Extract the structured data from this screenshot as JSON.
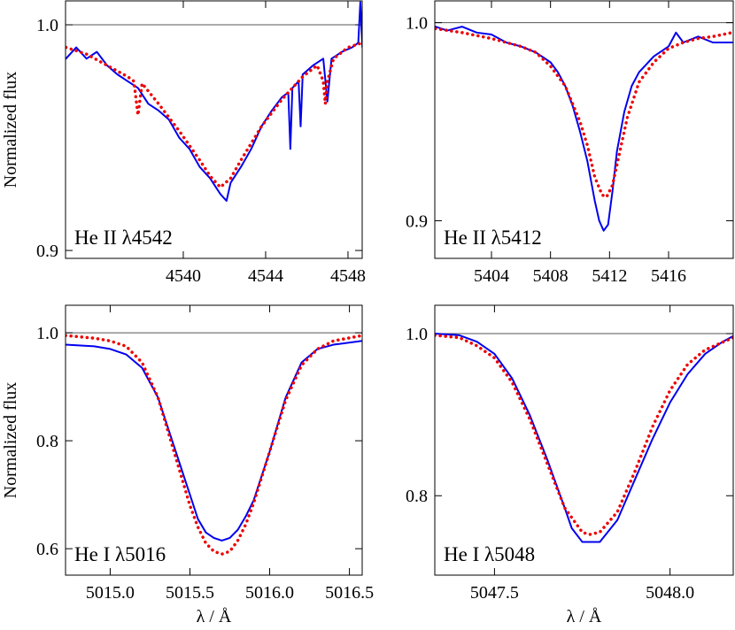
{
  "chart_data": [
    {
      "type": "line",
      "annotation": "He II λ4542",
      "ylabel": "Normalized flux",
      "xlim": [
        4534.28,
        4548.69
      ],
      "ylim": [
        0.8965,
        1.0106
      ],
      "xticks": [
        4540,
        4544,
        4548
      ],
      "yticks": [
        {
          "value": 1,
          "label": "1.0"
        },
        0.9
      ],
      "reference_line": 1,
      "series": [
        {
          "color": "#0000ee",
          "style": "solid",
          "x": [
            4534.3,
            4534.8,
            4535.3,
            4535.8,
            4536.3,
            4536.8,
            4537.3,
            4537.8,
            4538.3,
            4538.8,
            4539.3,
            4539.8,
            4540.3,
            4540.8,
            4541.3,
            4541.8,
            4542.1,
            4542.3,
            4542.8,
            4543.3,
            4543.8,
            4544.3,
            4544.8,
            4545.1,
            4545.2,
            4545.3,
            4545.6,
            4545.7,
            4545.8,
            4546.3,
            4546.8,
            4547.0,
            4547.2,
            4547.7,
            4548.2,
            4548.5,
            4548.6,
            4548.7
          ],
          "values": [
            0.985,
            0.99,
            0.985,
            0.988,
            0.982,
            0.978,
            0.975,
            0.972,
            0.965,
            0.962,
            0.958,
            0.95,
            0.945,
            0.937,
            0.932,
            0.925,
            0.922,
            0.93,
            0.937,
            0.945,
            0.955,
            0.962,
            0.968,
            0.97,
            0.945,
            0.972,
            0.975,
            0.955,
            0.978,
            0.982,
            0.985,
            0.966,
            0.985,
            0.988,
            0.99,
            0.992,
            1.01,
            0.99
          ]
        },
        {
          "color": "#ee0000",
          "style": "dotted",
          "x": [
            4534.3,
            4535.3,
            4536.3,
            4537.3,
            4537.6,
            4537.8,
            4538.0,
            4538.8,
            4539.8,
            4540.8,
            4541.3,
            4541.8,
            4542.3,
            4542.8,
            4543.8,
            4544.8,
            4545.8,
            4546.5,
            4546.8,
            4546.9,
            4547.0,
            4547.3,
            4548.0,
            4548.7
          ],
          "values": [
            0.99,
            0.987,
            0.982,
            0.977,
            0.975,
            0.96,
            0.974,
            0.965,
            0.953,
            0.94,
            0.933,
            0.928,
            0.932,
            0.94,
            0.955,
            0.967,
            0.977,
            0.982,
            0.975,
            0.965,
            0.975,
            0.985,
            0.99,
            0.992
          ]
        }
      ]
    },
    {
      "type": "line",
      "annotation": "He II λ5412",
      "xlim": [
        5400.16,
        5420.38
      ],
      "ylim": [
        0.881,
        1.011
      ],
      "xticks": [
        5404,
        5408,
        5412,
        5416
      ],
      "yticks": [
        {
          "value": 1,
          "label": "1.0"
        },
        0.9
      ],
      "reference_line": 1,
      "series": [
        {
          "color": "#0000ee",
          "style": "solid",
          "x": [
            5400.2,
            5401,
            5402,
            5403,
            5404,
            5405,
            5406,
            5407,
            5408,
            5408.5,
            5409,
            5409.5,
            5410,
            5410.5,
            5411,
            5411.3,
            5411.6,
            5411.9,
            5412.2,
            5412.5,
            5413,
            5413.5,
            5414,
            5415,
            5416,
            5416.5,
            5417,
            5418,
            5419,
            5420.3
          ],
          "values": [
            0.998,
            0.996,
            0.998,
            0.995,
            0.994,
            0.99,
            0.988,
            0.985,
            0.98,
            0.975,
            0.968,
            0.958,
            0.945,
            0.93,
            0.91,
            0.9,
            0.895,
            0.898,
            0.915,
            0.935,
            0.955,
            0.968,
            0.975,
            0.983,
            0.988,
            0.995,
            0.99,
            0.993,
            0.99,
            0.99
          ]
        },
        {
          "color": "#ee0000",
          "style": "dotted",
          "x": [
            5400.2,
            5402,
            5404,
            5406,
            5407,
            5408,
            5409,
            5410,
            5410.5,
            5411,
            5411.5,
            5411.8,
            5412.2,
            5412.7,
            5413.2,
            5414,
            5415,
            5416,
            5417,
            5418,
            5419,
            5420.3
          ],
          "values": [
            0.997,
            0.995,
            0.992,
            0.988,
            0.985,
            0.978,
            0.968,
            0.95,
            0.938,
            0.922,
            0.913,
            0.912,
            0.918,
            0.935,
            0.952,
            0.97,
            0.98,
            0.987,
            0.99,
            0.992,
            0.993,
            0.995
          ]
        }
      ]
    },
    {
      "type": "line",
      "annotation": "He I λ5016",
      "ylabel": "Normalized flux",
      "xlabel": "λ / Å",
      "xlim": [
        5014.72,
        5016.58
      ],
      "ylim": [
        0.551,
        1.051
      ],
      "xticks": [
        {
          "value": 5015,
          "label": "5015.0"
        },
        5015.5,
        {
          "value": 5016,
          "label": "5016.0"
        },
        5016.5
      ],
      "yticks": [
        {
          "value": 1,
          "label": "1.0"
        },
        0.8,
        0.6
      ],
      "reference_line": 1,
      "series": [
        {
          "color": "#0000ee",
          "style": "solid",
          "x": [
            5014.72,
            5014.9,
            5015.0,
            5015.1,
            5015.2,
            5015.3,
            5015.4,
            5015.5,
            5015.55,
            5015.6,
            5015.65,
            5015.7,
            5015.75,
            5015.8,
            5015.85,
            5015.9,
            5016.0,
            5016.1,
            5016.2,
            5016.3,
            5016.4,
            5016.58
          ],
          "values": [
            0.978,
            0.975,
            0.97,
            0.96,
            0.935,
            0.88,
            0.79,
            0.7,
            0.655,
            0.63,
            0.62,
            0.615,
            0.62,
            0.635,
            0.66,
            0.69,
            0.78,
            0.88,
            0.945,
            0.97,
            0.978,
            0.985
          ]
        },
        {
          "color": "#ee0000",
          "style": "dotted",
          "x": [
            5014.72,
            5014.9,
            5015.0,
            5015.1,
            5015.2,
            5015.3,
            5015.4,
            5015.5,
            5015.55,
            5015.6,
            5015.65,
            5015.7,
            5015.75,
            5015.8,
            5015.85,
            5015.9,
            5016.0,
            5016.1,
            5016.2,
            5016.3,
            5016.4,
            5016.58
          ],
          "values": [
            0.995,
            0.99,
            0.985,
            0.975,
            0.945,
            0.88,
            0.78,
            0.68,
            0.64,
            0.61,
            0.595,
            0.59,
            0.595,
            0.615,
            0.645,
            0.685,
            0.78,
            0.875,
            0.94,
            0.97,
            0.985,
            0.995
          ]
        }
      ]
    },
    {
      "type": "line",
      "annotation": "He I λ5048",
      "xlabel": "λ / Å",
      "xlim": [
        5047.33,
        5048.18
      ],
      "ylim": [
        0.702,
        1.035
      ],
      "xticks": [
        5047.5,
        {
          "value": 5048,
          "label": "5048.0"
        }
      ],
      "yticks": [
        {
          "value": 1,
          "label": "1.0"
        },
        0.8
      ],
      "reference_line": 1,
      "series": [
        {
          "color": "#0000ee",
          "style": "solid",
          "x": [
            5047.33,
            5047.4,
            5047.45,
            5047.5,
            5047.55,
            5047.6,
            5047.65,
            5047.7,
            5047.72,
            5047.75,
            5047.8,
            5047.85,
            5047.9,
            5047.95,
            5048.0,
            5048.05,
            5048.1,
            5048.15,
            5048.18
          ],
          "values": [
            1.0,
            0.998,
            0.99,
            0.975,
            0.945,
            0.9,
            0.845,
            0.785,
            0.76,
            0.743,
            0.743,
            0.77,
            0.82,
            0.87,
            0.915,
            0.95,
            0.975,
            0.99,
            0.997
          ]
        },
        {
          "color": "#ee0000",
          "style": "dotted",
          "x": [
            5047.33,
            5047.4,
            5047.45,
            5047.5,
            5047.55,
            5047.6,
            5047.65,
            5047.7,
            5047.75,
            5047.77,
            5047.8,
            5047.85,
            5047.9,
            5047.95,
            5048.0,
            5048.05,
            5048.1,
            5048.18
          ],
          "values": [
            0.998,
            0.995,
            0.985,
            0.97,
            0.94,
            0.895,
            0.84,
            0.785,
            0.755,
            0.752,
            0.755,
            0.78,
            0.83,
            0.885,
            0.93,
            0.962,
            0.98,
            0.995
          ]
        }
      ]
    }
  ]
}
